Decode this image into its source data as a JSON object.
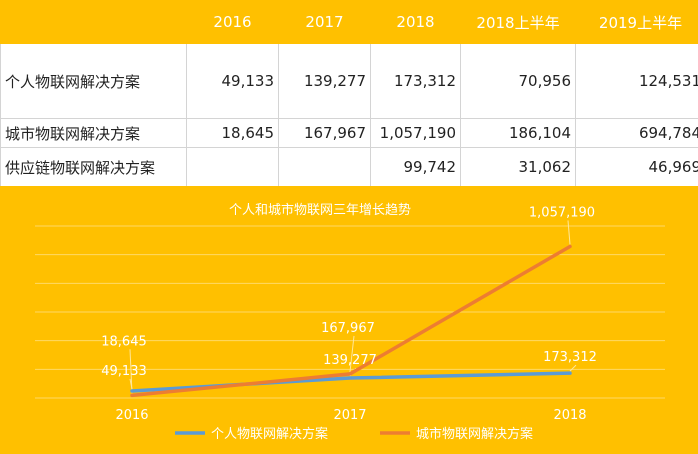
{
  "table": {
    "headers": [
      "",
      "2016",
      "2017",
      "2018",
      "2018上半年",
      "2019上半年"
    ],
    "rows": [
      {
        "label": "个人物联网解决方案",
        "values": [
          "49,133",
          "139,277",
          "173,312",
          "70,956",
          "124,531"
        ]
      },
      {
        "label": "城市物联网解决方案",
        "values": [
          "18,645",
          "167,967",
          "1,057,190",
          "186,104",
          "694,784"
        ]
      },
      {
        "label": "供应链物联网解决方案",
        "values": [
          "",
          "",
          "99,742",
          "31,062",
          "46,969"
        ]
      }
    ]
  },
  "chart_data": {
    "type": "line",
    "title": "个人和城市物联网三年增长趋势",
    "categories": [
      "2016",
      "2017",
      "2018"
    ],
    "series": [
      {
        "name": "个人物联网解决方案",
        "values": [
          49133,
          139277,
          173312
        ],
        "labels": [
          "49,133",
          "139,277",
          "173,312"
        ],
        "color": "#5b9bd5"
      },
      {
        "name": "城市物联网解决方案",
        "values": [
          18645,
          167967,
          1057190
        ],
        "labels": [
          "18,645",
          "167,967",
          "1,057,190"
        ],
        "color": "#ed7d31"
      }
    ],
    "ylim": [
      0,
      1200000
    ],
    "grid": true,
    "legend": "bottom"
  },
  "colors": {
    "background": "#ffc000",
    "table_bg": "#ffffff",
    "grid": "#ffd966"
  }
}
